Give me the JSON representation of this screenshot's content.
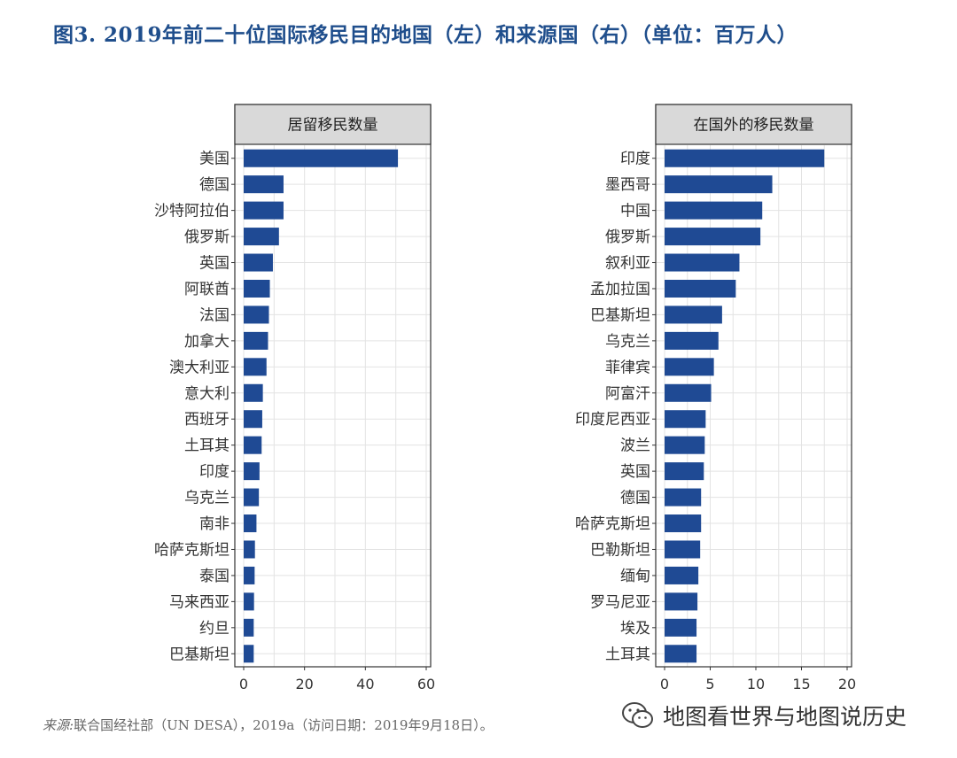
{
  "title": "图3. 2019年前二十位国际移民目的地国（左）和来源国（右）（单位：百万人）",
  "source": {
    "prefix": "来源:",
    "text": "联合国经社部（UN DESA），2019a（访问日期：2019年9月18日）。"
  },
  "watermark": "地图看世界与地图说历史",
  "colors": {
    "bar": "#1f4a94",
    "title": "#1f4e8c",
    "strip": "#d9d9d9",
    "grid": "#e3e3e3"
  },
  "chart_data": [
    {
      "type": "bar",
      "orientation": "horizontal",
      "panel_title": "居留移民数量",
      "categories": [
        "美国",
        "德国",
        "沙特阿拉伯",
        "俄罗斯",
        "英国",
        "阿联酋",
        "法国",
        "加拿大",
        "澳大利亚",
        "意大利",
        "西班牙",
        "土耳其",
        "印度",
        "乌克兰",
        "南非",
        "哈萨克斯坦",
        "泰国",
        "马来西亚",
        "约旦",
        "巴基斯坦"
      ],
      "values": [
        50.7,
        13.1,
        13.1,
        11.6,
        9.6,
        8.6,
        8.3,
        8.0,
        7.5,
        6.3,
        6.1,
        5.9,
        5.2,
        5.0,
        4.2,
        3.7,
        3.6,
        3.4,
        3.3,
        3.3
      ],
      "xlim": [
        0,
        60
      ],
      "xticks": [
        0,
        20,
        40,
        60
      ],
      "grid": true
    },
    {
      "type": "bar",
      "orientation": "horizontal",
      "panel_title": "在国外的移民数量",
      "categories": [
        "印度",
        "墨西哥",
        "中国",
        "俄罗斯",
        "叙利亚",
        "孟加拉国",
        "巴基斯坦",
        "乌克兰",
        "菲律宾",
        "阿富汗",
        "印度尼西亚",
        "波兰",
        "英国",
        "德国",
        "哈萨克斯坦",
        "巴勒斯坦",
        "缅甸",
        "罗马尼亚",
        "埃及",
        "土耳其"
      ],
      "values": [
        17.5,
        11.8,
        10.7,
        10.5,
        8.2,
        7.8,
        6.3,
        5.9,
        5.4,
        5.1,
        4.5,
        4.4,
        4.3,
        4.0,
        4.0,
        3.9,
        3.7,
        3.6,
        3.5,
        3.5
      ],
      "xlim": [
        0,
        20
      ],
      "xticks": [
        0,
        5,
        10,
        15,
        20
      ],
      "grid": true
    }
  ]
}
